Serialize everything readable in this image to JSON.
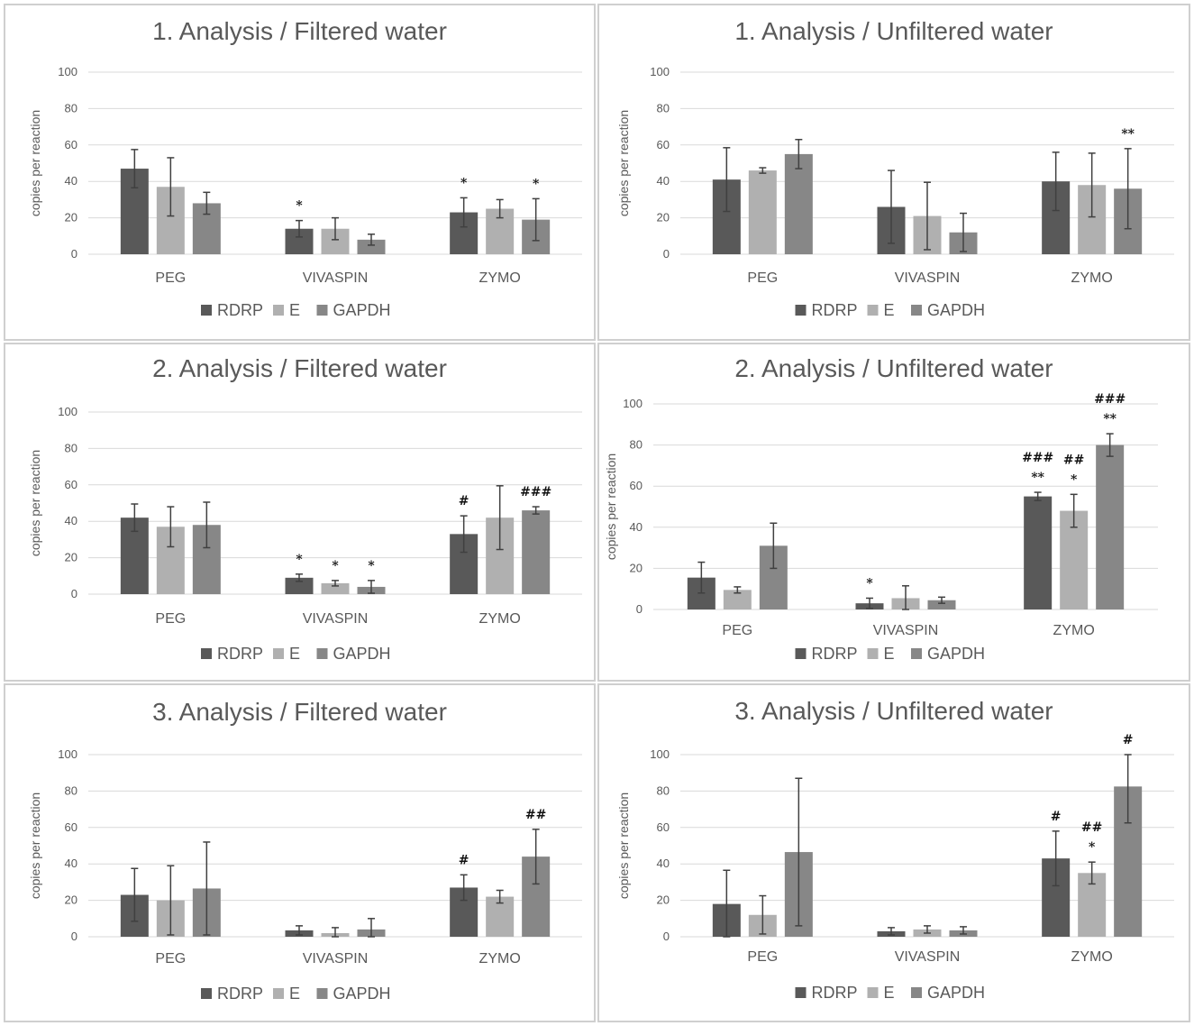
{
  "colors": {
    "RDRP": "#595959",
    "E": "#b0b0b0",
    "GAPDH": "#878787",
    "grid": "#d9d9d9",
    "error": "#404040"
  },
  "chart_data": [
    {
      "type": "bar",
      "title": "1. Analysis / Filtered water",
      "ylabel": "copies per reaction",
      "ylim": [
        0,
        100
      ],
      "yticks": [
        "0",
        "20",
        "40",
        "60",
        "80",
        "100"
      ],
      "categories": [
        "PEG",
        "VIVASPIN",
        "ZYMO"
      ],
      "legend": [
        "RDRP",
        "E",
        "GAPDH"
      ],
      "series": [
        {
          "name": "RDRP",
          "values": [
            47,
            14,
            23
          ],
          "errors": [
            10.5,
            4.5,
            8
          ],
          "annotations": [
            [],
            [
              "*"
            ],
            [
              "*"
            ]
          ]
        },
        {
          "name": "E",
          "values": [
            37,
            14,
            25
          ],
          "errors": [
            16,
            6,
            5
          ],
          "annotations": [
            [],
            [],
            []
          ]
        },
        {
          "name": "GAPDH",
          "values": [
            28,
            8,
            19
          ],
          "errors": [
            6,
            3,
            11.5
          ],
          "annotations": [
            [],
            [],
            [
              "*"
            ]
          ]
        }
      ]
    },
    {
      "type": "bar",
      "title": "1. Analysis / Unfiltered water",
      "ylabel": "copies per reaction",
      "ylim": [
        0,
        100
      ],
      "yticks": [
        "0",
        "20",
        "40",
        "60",
        "80",
        "100"
      ],
      "categories": [
        "PEG",
        "VIVASPIN",
        "ZYMO"
      ],
      "legend": [
        "RDRP",
        "E",
        "GAPDH"
      ],
      "series": [
        {
          "name": "RDRP",
          "values": [
            41,
            26,
            40
          ],
          "errors": [
            17.5,
            20,
            16
          ],
          "annotations": [
            [],
            [],
            []
          ]
        },
        {
          "name": "E",
          "values": [
            46,
            21,
            38
          ],
          "errors": [
            1.5,
            18.5,
            17.5
          ],
          "annotations": [
            [],
            [],
            []
          ]
        },
        {
          "name": "GAPDH",
          "values": [
            55,
            12,
            36
          ],
          "errors": [
            8,
            10.5,
            22
          ],
          "annotations": [
            [],
            [],
            [
              "**"
            ]
          ]
        }
      ]
    },
    {
      "type": "bar",
      "title": "2. Analysis / Filtered water",
      "ylabel": "copies per reaction",
      "ylim": [
        0,
        100
      ],
      "yticks": [
        "0",
        "20",
        "40",
        "60",
        "80",
        "100"
      ],
      "categories": [
        "PEG",
        "VIVASPIN",
        "ZYMO"
      ],
      "legend": [
        "RDRP",
        "E",
        "GAPDH"
      ],
      "series": [
        {
          "name": "RDRP",
          "values": [
            42,
            9,
            33
          ],
          "errors": [
            7.5,
            2,
            10
          ],
          "annotations": [
            [],
            [
              "*"
            ],
            [
              "#"
            ]
          ]
        },
        {
          "name": "E",
          "values": [
            37,
            6,
            42
          ],
          "errors": [
            11,
            1.5,
            17.5
          ],
          "annotations": [
            [],
            [
              "*"
            ],
            []
          ]
        },
        {
          "name": "GAPDH",
          "values": [
            38,
            4,
            46
          ],
          "errors": [
            12.5,
            3.5,
            2
          ],
          "annotations": [
            [],
            [
              "*"
            ],
            [
              "###"
            ]
          ]
        }
      ]
    },
    {
      "type": "bar",
      "title": "2. Analysis / Unfiltered water",
      "ylabel": "copies per reaction",
      "ylim": [
        0,
        100
      ],
      "yticks": [
        "0",
        "20",
        "40",
        "60",
        "80",
        "100"
      ],
      "categories": [
        "PEG",
        "VIVASPIN",
        "ZYMO"
      ],
      "legend": [
        "RDRP",
        "E",
        "GAPDH"
      ],
      "series": [
        {
          "name": "RDRP",
          "values": [
            15.5,
            3,
            55
          ],
          "errors": [
            7.5,
            2.5,
            2
          ],
          "annotations": [
            [],
            [
              "*"
            ],
            [
              "**",
              "###"
            ]
          ]
        },
        {
          "name": "E",
          "values": [
            9.5,
            5.5,
            48
          ],
          "errors": [
            1.5,
            6,
            8
          ],
          "annotations": [
            [],
            [],
            [
              "*",
              "##"
            ]
          ]
        },
        {
          "name": "GAPDH",
          "values": [
            31,
            4.5,
            80
          ],
          "errors": [
            11,
            1.5,
            5.5
          ],
          "annotations": [
            [],
            [],
            [
              "**",
              "###"
            ]
          ]
        }
      ]
    },
    {
      "type": "bar",
      "title": "3. Analysis / Filtered water",
      "ylabel": "copies per reaction",
      "ylim": [
        0,
        100
      ],
      "yticks": [
        "0",
        "20",
        "40",
        "60",
        "80",
        "100"
      ],
      "categories": [
        "PEG",
        "VIVASPIN",
        "ZYMO"
      ],
      "legend": [
        "RDRP",
        "E",
        "GAPDH"
      ],
      "series": [
        {
          "name": "RDRP",
          "values": [
            23,
            3.5,
            27
          ],
          "errors": [
            14.5,
            2.5,
            7
          ],
          "annotations": [
            [],
            [],
            [
              "#"
            ]
          ]
        },
        {
          "name": "E",
          "values": [
            20,
            2,
            22
          ],
          "errors": [
            19,
            3,
            3.5
          ],
          "annotations": [
            [],
            [],
            []
          ]
        },
        {
          "name": "GAPDH",
          "values": [
            26.5,
            4,
            44
          ],
          "errors": [
            25.5,
            6,
            15
          ],
          "annotations": [
            [],
            [],
            [
              "##"
            ]
          ]
        }
      ]
    },
    {
      "type": "bar",
      "title": "3. Analysis / Unfiltered water",
      "ylabel": "copies per reaction",
      "ylim": [
        0,
        100
      ],
      "yticks": [
        "0",
        "20",
        "40",
        "60",
        "80",
        "100"
      ],
      "categories": [
        "PEG",
        "VIVASPIN",
        "ZYMO"
      ],
      "legend": [
        "RDRP",
        "E",
        "GAPDH"
      ],
      "series": [
        {
          "name": "RDRP",
          "values": [
            18,
            3,
            43
          ],
          "errors": [
            18.5,
            2,
            15
          ],
          "annotations": [
            [],
            [],
            [
              "#"
            ]
          ]
        },
        {
          "name": "E",
          "values": [
            12,
            4,
            35
          ],
          "errors": [
            10.5,
            2,
            6
          ],
          "annotations": [
            [],
            [],
            [
              "*",
              "##"
            ]
          ]
        },
        {
          "name": "GAPDH",
          "values": [
            46.5,
            3.5,
            82.5
          ],
          "errors": [
            40.5,
            2,
            20
          ],
          "annotations": [
            [],
            [],
            [
              "#"
            ]
          ]
        }
      ]
    }
  ]
}
